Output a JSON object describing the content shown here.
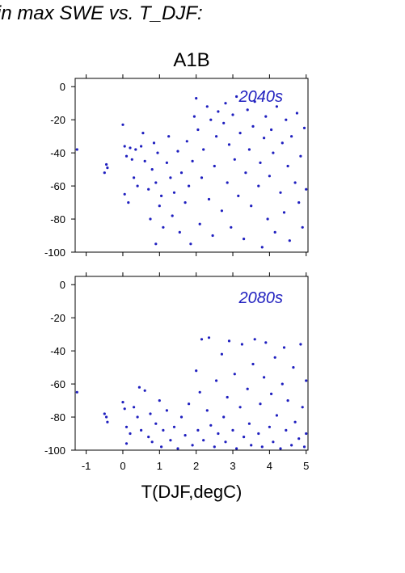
{
  "figure": {
    "header": "in max SWE vs. T_DJF:",
    "scenario": "A1B",
    "xlabel": "T(DJF,degC)"
  },
  "colors": {
    "points": "#1f1fbf",
    "axes": "#000000",
    "label": "#1f1fbf"
  },
  "chart_data": [
    {
      "type": "scatter",
      "panel_label": "2040s",
      "xlim": [
        -1.3,
        5.05
      ],
      "ylim": [
        -100,
        5
      ],
      "xticks": [
        -1,
        0,
        1,
        2,
        3,
        4,
        5
      ],
      "yticks": [
        0,
        -20,
        -40,
        -60,
        -80,
        -100
      ],
      "xtick_labels": [
        "-1",
        "0",
        "1",
        "2",
        "3",
        "4",
        "5"
      ],
      "ytick_labels": [
        "0",
        "-20",
        "-40",
        "-60",
        "-80",
        "-100"
      ],
      "points": [
        [
          -1.25,
          -38
        ],
        [
          -0.5,
          -52
        ],
        [
          -0.45,
          -47
        ],
        [
          -0.42,
          -49
        ],
        [
          0.0,
          -23
        ],
        [
          0.05,
          -36
        ],
        [
          0.1,
          -42
        ],
        [
          0.2,
          -37
        ],
        [
          0.25,
          -44
        ],
        [
          0.3,
          -55
        ],
        [
          0.35,
          -38
        ],
        [
          0.05,
          -65
        ],
        [
          0.15,
          -70
        ],
        [
          0.4,
          -60
        ],
        [
          0.5,
          -36
        ],
        [
          0.55,
          -28
        ],
        [
          0.6,
          -45
        ],
        [
          0.7,
          -62
        ],
        [
          0.75,
          -80
        ],
        [
          0.8,
          -50
        ],
        [
          0.85,
          -34
        ],
        [
          0.9,
          -58
        ],
        [
          0.95,
          -40
        ],
        [
          1.0,
          -72
        ],
        [
          1.05,
          -66
        ],
        [
          1.1,
          -85
        ],
        [
          0.9,
          -95
        ],
        [
          1.2,
          -46
        ],
        [
          1.25,
          -30
        ],
        [
          1.3,
          -55
        ],
        [
          1.35,
          -78
        ],
        [
          1.4,
          -64
        ],
        [
          1.5,
          -39
        ],
        [
          1.55,
          -88
        ],
        [
          1.6,
          -52
        ],
        [
          1.7,
          -70
        ],
        [
          1.75,
          -33
        ],
        [
          1.8,
          -60
        ],
        [
          1.85,
          -95
        ],
        [
          1.9,
          -45
        ],
        [
          1.95,
          -18
        ],
        [
          2.0,
          -7
        ],
        [
          2.05,
          -26
        ],
        [
          2.1,
          -83
        ],
        [
          2.15,
          -55
        ],
        [
          2.2,
          -38
        ],
        [
          2.3,
          -12
        ],
        [
          2.35,
          -68
        ],
        [
          2.4,
          -20
        ],
        [
          2.45,
          -90
        ],
        [
          2.5,
          -48
        ],
        [
          2.55,
          -30
        ],
        [
          2.6,
          -15
        ],
        [
          2.7,
          -75
        ],
        [
          2.75,
          -22
        ],
        [
          2.8,
          -10
        ],
        [
          2.85,
          -58
        ],
        [
          2.9,
          -35
        ],
        [
          2.95,
          -85
        ],
        [
          3.0,
          -17
        ],
        [
          3.05,
          -44
        ],
        [
          3.1,
          -6
        ],
        [
          3.15,
          -66
        ],
        [
          3.2,
          -28
        ],
        [
          3.3,
          -92
        ],
        [
          3.35,
          -52
        ],
        [
          3.4,
          -14
        ],
        [
          3.45,
          -38
        ],
        [
          3.5,
          -72
        ],
        [
          3.55,
          -24
        ],
        [
          3.6,
          -9
        ],
        [
          3.7,
          -60
        ],
        [
          3.75,
          -46
        ],
        [
          3.8,
          -97
        ],
        [
          3.85,
          -31
        ],
        [
          3.9,
          -18
        ],
        [
          3.95,
          -80
        ],
        [
          4.0,
          -54
        ],
        [
          4.05,
          -26
        ],
        [
          4.1,
          -40
        ],
        [
          4.15,
          -88
        ],
        [
          4.2,
          -12
        ],
        [
          4.3,
          -64
        ],
        [
          4.35,
          -34
        ],
        [
          4.4,
          -76
        ],
        [
          4.45,
          -20
        ],
        [
          4.5,
          -48
        ],
        [
          4.55,
          -93
        ],
        [
          4.6,
          -30
        ],
        [
          4.7,
          -58
        ],
        [
          4.75,
          -16
        ],
        [
          4.8,
          -70
        ],
        [
          4.85,
          -42
        ],
        [
          4.9,
          -85
        ],
        [
          4.95,
          -25
        ],
        [
          5.0,
          -62
        ]
      ]
    },
    {
      "type": "scatter",
      "panel_label": "2080s",
      "xlim": [
        -1.3,
        5.05
      ],
      "ylim": [
        -100,
        5
      ],
      "xticks": [
        -1,
        0,
        1,
        2,
        3,
        4,
        5
      ],
      "yticks": [
        0,
        -20,
        -40,
        -60,
        -80,
        -100
      ],
      "xtick_labels": [
        "-1",
        "0",
        "1",
        "2",
        "3",
        "4",
        "5"
      ],
      "ytick_labels": [
        "0",
        "-20",
        "-40",
        "-60",
        "-80",
        "-100"
      ],
      "points": [
        [
          -1.25,
          -65
        ],
        [
          -0.5,
          -78
        ],
        [
          -0.45,
          -80
        ],
        [
          -0.42,
          -83
        ],
        [
          0.0,
          -71
        ],
        [
          0.05,
          -75
        ],
        [
          0.1,
          -86
        ],
        [
          0.2,
          -90
        ],
        [
          0.1,
          -96
        ],
        [
          0.3,
          -74
        ],
        [
          0.4,
          -80
        ],
        [
          0.45,
          -62
        ],
        [
          0.5,
          -88
        ],
        [
          0.6,
          -64
        ],
        [
          0.7,
          -92
        ],
        [
          0.75,
          -78
        ],
        [
          0.8,
          -95
        ],
        [
          0.9,
          -84
        ],
        [
          1.0,
          -70
        ],
        [
          1.05,
          -98
        ],
        [
          1.1,
          -88
        ],
        [
          1.2,
          -76
        ],
        [
          1.3,
          -94
        ],
        [
          1.4,
          -86
        ],
        [
          1.5,
          -99
        ],
        [
          1.6,
          -80
        ],
        [
          1.7,
          -91
        ],
        [
          1.8,
          -72
        ],
        [
          1.9,
          -97
        ],
        [
          2.0,
          -52
        ],
        [
          2.05,
          -88
        ],
        [
          2.1,
          -65
        ],
        [
          2.15,
          -33
        ],
        [
          2.2,
          -94
        ],
        [
          2.3,
          -76
        ],
        [
          2.35,
          -32
        ],
        [
          2.4,
          -85
        ],
        [
          2.5,
          -98
        ],
        [
          2.55,
          -58
        ],
        [
          2.6,
          -90
        ],
        [
          2.7,
          -42
        ],
        [
          2.75,
          -80
        ],
        [
          2.8,
          -95
        ],
        [
          2.85,
          -68
        ],
        [
          2.9,
          -34
        ],
        [
          3.0,
          -88
        ],
        [
          3.05,
          -54
        ],
        [
          3.1,
          -99
        ],
        [
          3.2,
          -74
        ],
        [
          3.25,
          -36
        ],
        [
          3.3,
          -92
        ],
        [
          3.4,
          -63
        ],
        [
          3.45,
          -84
        ],
        [
          3.5,
          -97
        ],
        [
          3.55,
          -48
        ],
        [
          3.6,
          -33
        ],
        [
          3.7,
          -90
        ],
        [
          3.75,
          -72
        ],
        [
          3.8,
          -98
        ],
        [
          3.85,
          -56
        ],
        [
          3.9,
          -35
        ],
        [
          4.0,
          -86
        ],
        [
          4.05,
          -66
        ],
        [
          4.1,
          -95
        ],
        [
          4.15,
          -44
        ],
        [
          4.2,
          -79
        ],
        [
          4.3,
          -99
        ],
        [
          4.35,
          -60
        ],
        [
          4.4,
          -38
        ],
        [
          4.45,
          -88
        ],
        [
          4.5,
          -70
        ],
        [
          4.6,
          -97
        ],
        [
          4.65,
          -50
        ],
        [
          4.7,
          -83
        ],
        [
          4.8,
          -93
        ],
        [
          4.85,
          -36
        ],
        [
          4.9,
          -74
        ],
        [
          4.95,
          -98
        ],
        [
          5.0,
          -58
        ],
        [
          5.0,
          -90
        ]
      ]
    }
  ]
}
